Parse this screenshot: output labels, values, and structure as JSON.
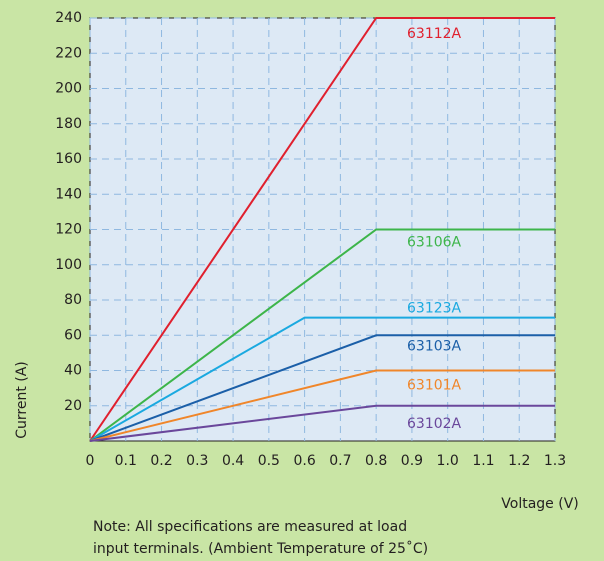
{
  "chart_data": {
    "type": "line",
    "xlabel": "Voltage (V)",
    "ylabel": "Current (A)",
    "note": [
      "Note: All specifications are measured at load",
      "input terminals. (Ambient Temperature of 25˚C)"
    ],
    "xlim": [
      0,
      1.3
    ],
    "ylim": [
      0,
      240
    ],
    "xticks": [
      0,
      0.1,
      0.2,
      0.3,
      0.4,
      0.5,
      0.6,
      0.7,
      0.8,
      0.9,
      {
        "value": 1,
        "label": "1.0"
      },
      1.1,
      1.2,
      1.3
    ],
    "yticks": [
      20,
      40,
      60,
      80,
      100,
      120,
      140,
      160,
      180,
      200,
      220,
      240
    ],
    "grid": true,
    "series": [
      {
        "name": "63112A",
        "color": "#e0202e",
        "x": [
          0,
          0.8,
          1.3
        ],
        "values": [
          0,
          240,
          240
        ]
      },
      {
        "name": "63106A",
        "color": "#3db54a",
        "x": [
          0,
          0.8,
          1.3
        ],
        "values": [
          0,
          120,
          120
        ]
      },
      {
        "name": "63123A",
        "color": "#1aa9e0",
        "x": [
          0,
          0.6,
          1.3
        ],
        "values": [
          0,
          70,
          70
        ]
      },
      {
        "name": "63103A",
        "color": "#1b5fa8",
        "x": [
          0,
          0.8,
          1.3
        ],
        "values": [
          0,
          60,
          60
        ]
      },
      {
        "name": "63101A",
        "color": "#f0862a",
        "x": [
          0,
          0.8,
          1.3
        ],
        "values": [
          0,
          40,
          40
        ]
      },
      {
        "name": "63102A",
        "color": "#6a479b",
        "x": [
          0,
          0.8,
          1.3
        ],
        "values": [
          0,
          20,
          20
        ]
      }
    ]
  }
}
